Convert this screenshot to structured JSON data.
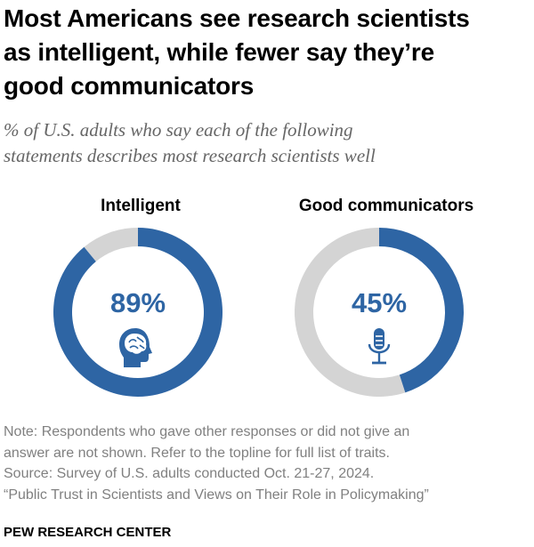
{
  "header": {
    "title_lines": [
      "Most Americans see research scientists",
      "as intelligent, while fewer say they’re",
      "good communicators"
    ],
    "subtitle_lines": [
      "% of U.S. adults who say each of the following",
      "statements describes most research scientists well"
    ]
  },
  "chart_data": {
    "type": "pie",
    "subtype": "donut",
    "units": "%",
    "charts": [
      {
        "title": "Intelligent",
        "value": 89,
        "label": "89%",
        "icon": "head-brain-icon"
      },
      {
        "title": "Good communicators",
        "value": 45,
        "label": "45%",
        "icon": "microphone-icon"
      }
    ],
    "colors": {
      "filled": "#2e65a4",
      "remainder": "#d4d4d4"
    }
  },
  "notes": {
    "lines": [
      "Note: Respondents who gave other responses or did not give an",
      "answer are not shown. Refer to the topline for full list of traits.",
      "Source: Survey of U.S. adults conducted Oct. 21-27, 2024.",
      "“Public Trust in Scientists and Views on Their Role in Policymaking”"
    ]
  },
  "footer": {
    "source_label": "PEW RESEARCH CENTER"
  }
}
